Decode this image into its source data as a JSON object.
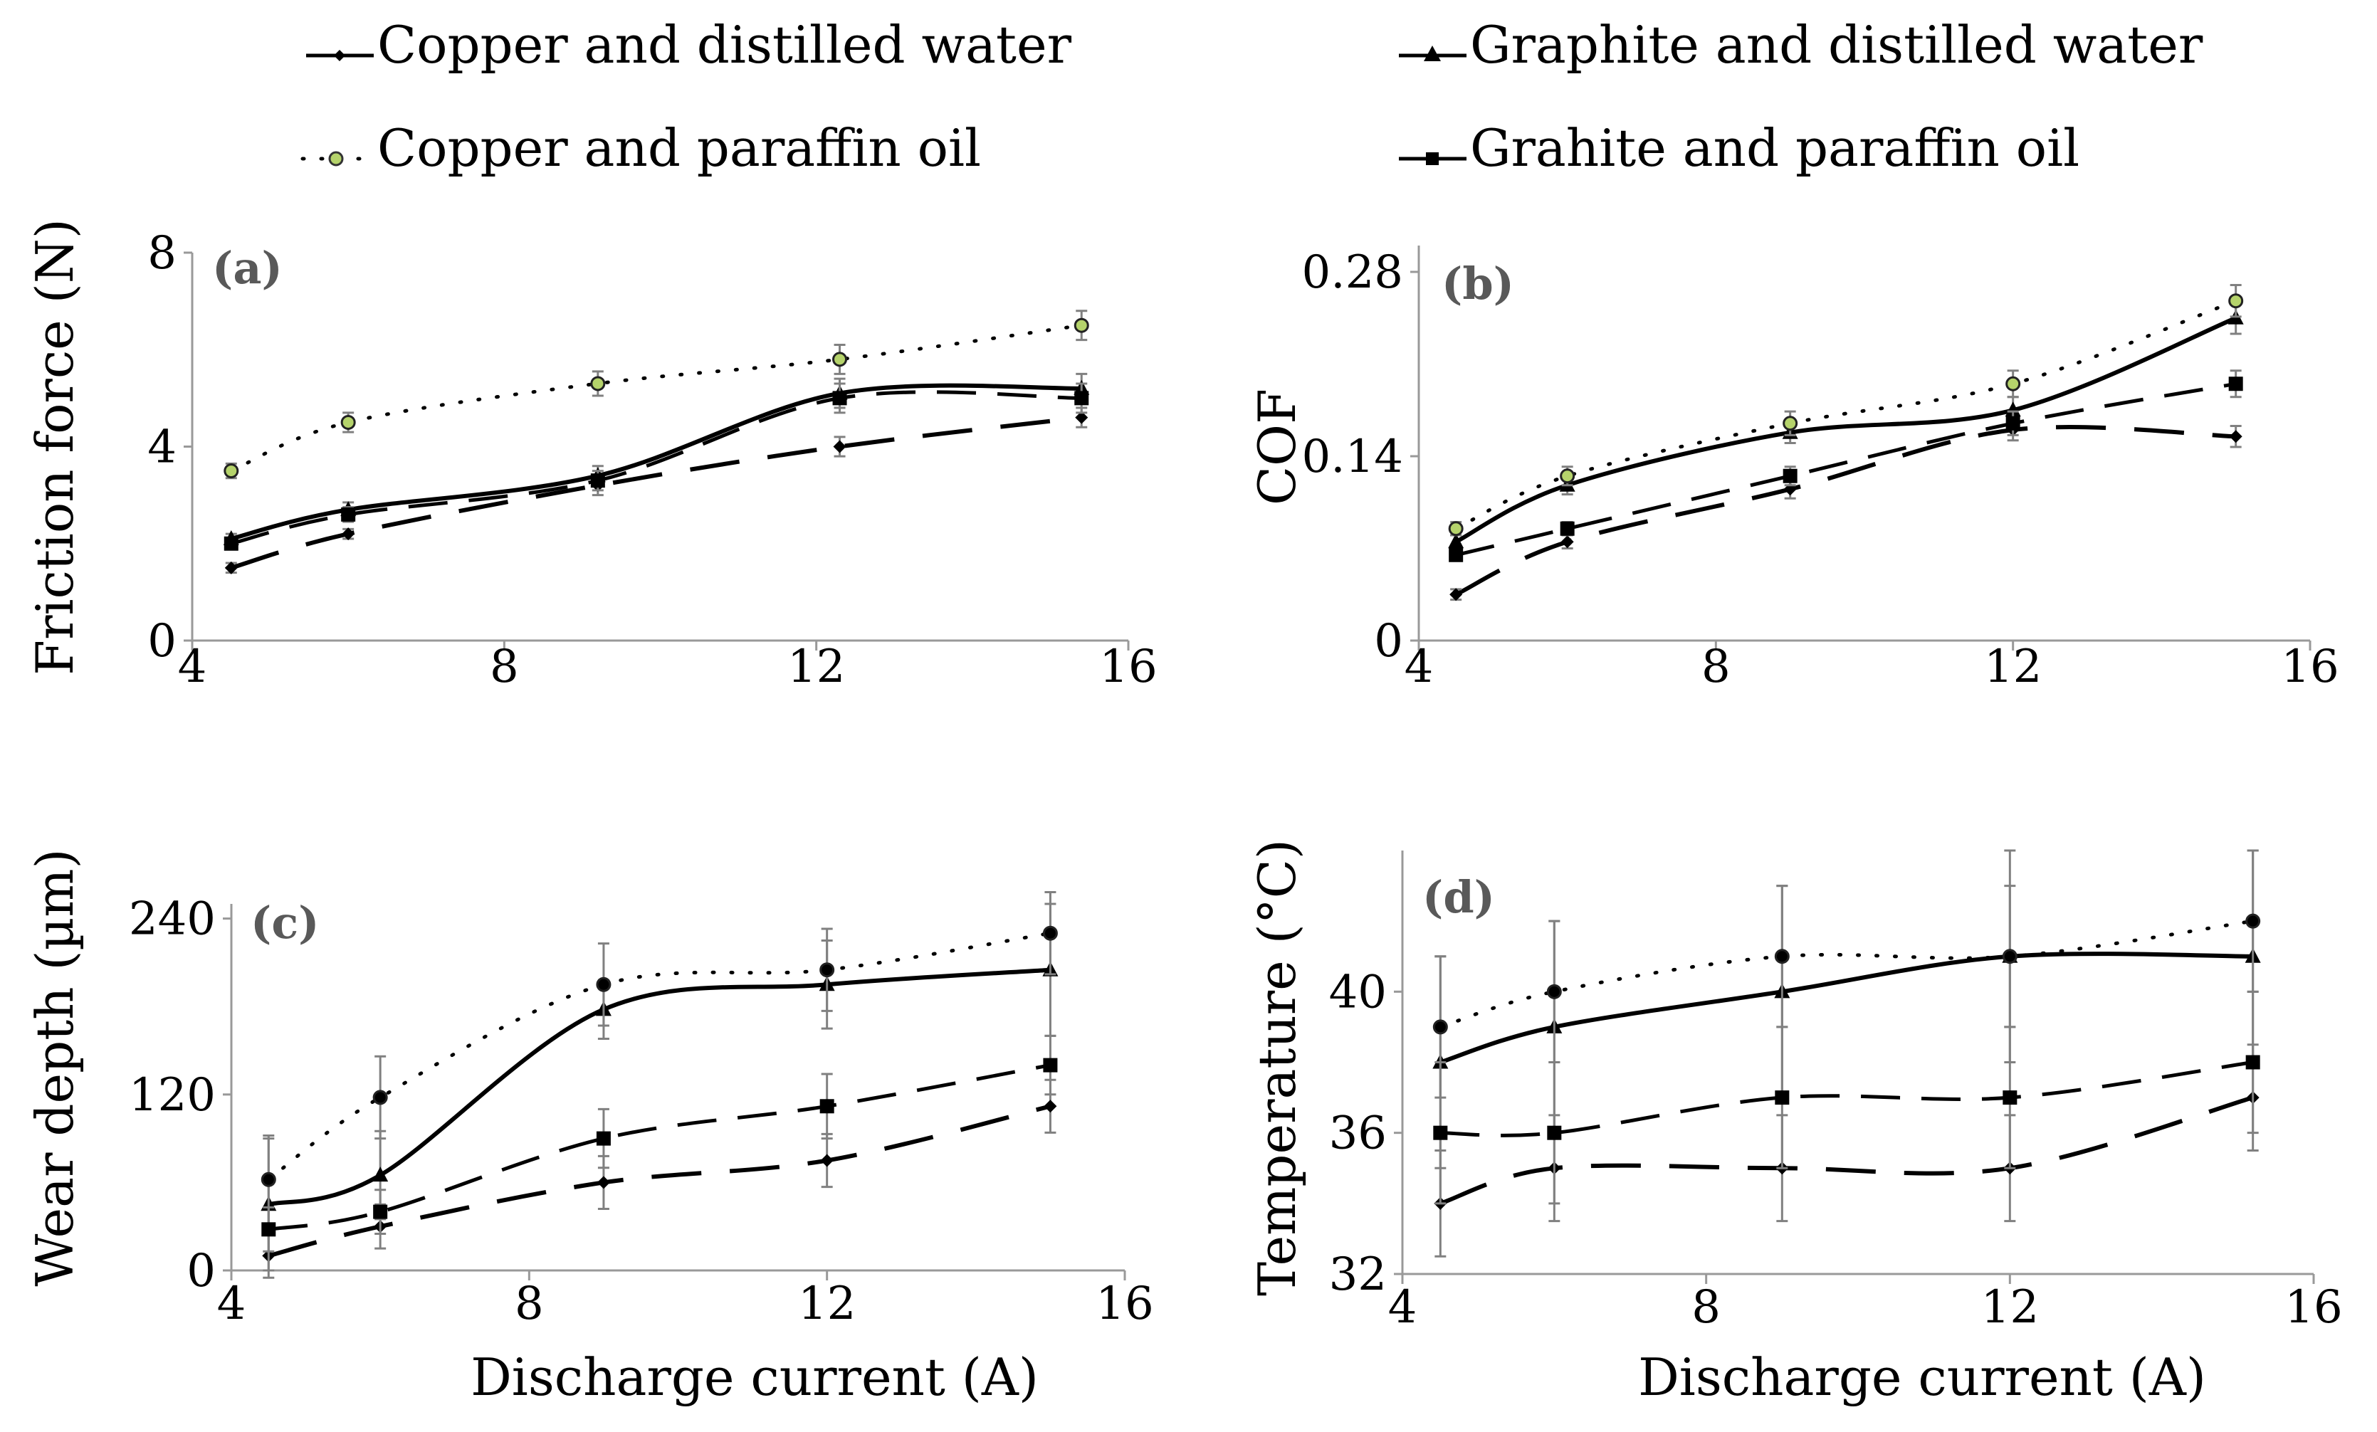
{
  "legend": {
    "items": [
      {
        "label": "Copper and distilled water",
        "marker": "diamond",
        "style": "dash2"
      },
      {
        "label": "Graphite and distilled water",
        "marker": "triangle",
        "style": "solid"
      },
      {
        "label": "Copper and paraffin oil",
        "marker": "circle-green",
        "style": "dot"
      },
      {
        "label": "Grahite and paraffin oil",
        "marker": "square",
        "style": "dash"
      }
    ]
  },
  "chart_data": [
    {
      "panel": "(a)",
      "type": "line",
      "ylabel": "Friction force (N)",
      "xlabel": "",
      "xlim": [
        4,
        16
      ],
      "ylim": [
        0,
        8
      ],
      "xticks": [
        "4",
        "8",
        "12",
        "16"
      ],
      "yticks": [
        "0",
        "4",
        "8"
      ],
      "series": [
        {
          "name": "Copper and distilled water",
          "x": [
            4.5,
            6,
            9.2,
            12.3,
            15.4
          ],
          "values": [
            1.5,
            2.2,
            3.2,
            4.0,
            4.6
          ],
          "err": [
            0.1,
            0.1,
            0.2,
            0.2,
            0.2
          ]
        },
        {
          "name": "Graphite and distilled water",
          "x": [
            4.5,
            6,
            9.2,
            12.3,
            15.4
          ],
          "values": [
            2.1,
            2.7,
            3.4,
            5.1,
            5.2
          ],
          "err": [
            0.1,
            0.15,
            0.2,
            0.3,
            0.3
          ]
        },
        {
          "name": "Copper and paraffin oil",
          "x": [
            4.5,
            6,
            9.2,
            12.3,
            15.4
          ],
          "values": [
            3.5,
            4.5,
            5.3,
            5.8,
            6.5
          ],
          "err": [
            0.15,
            0.2,
            0.25,
            0.3,
            0.3
          ]
        },
        {
          "name": "Grahite and paraffin oil",
          "x": [
            4.5,
            6,
            9.2,
            12.3,
            15.4
          ],
          "values": [
            2.0,
            2.6,
            3.3,
            5.0,
            5.0
          ],
          "err": [
            0.1,
            0.15,
            0.2,
            0.3,
            0.3
          ]
        }
      ]
    },
    {
      "panel": "(b)",
      "type": "line",
      "ylabel": "COF",
      "xlabel": "",
      "xlim": [
        4,
        16
      ],
      "ylim": [
        0,
        0.3
      ],
      "xticks": [
        "4",
        "8",
        "12",
        "16"
      ],
      "yticks": [
        "0",
        "0.14",
        "0.28"
      ],
      "series": [
        {
          "name": "Copper and distilled water",
          "x": [
            4.5,
            6,
            9,
            12,
            15
          ],
          "values": [
            0.035,
            0.075,
            0.115,
            0.16,
            0.155
          ],
          "err": [
            0.004,
            0.005,
            0.007,
            0.008,
            0.008
          ]
        },
        {
          "name": "Graphite and distilled water",
          "x": [
            4.5,
            6,
            9,
            12,
            15
          ],
          "values": [
            0.075,
            0.118,
            0.158,
            0.175,
            0.245
          ],
          "err": [
            0.005,
            0.007,
            0.008,
            0.01,
            0.012
          ]
        },
        {
          "name": "Copper and paraffin oil",
          "x": [
            4.5,
            6,
            9,
            12,
            15
          ],
          "values": [
            0.085,
            0.125,
            0.165,
            0.195,
            0.258
          ],
          "err": [
            0.005,
            0.007,
            0.009,
            0.01,
            0.012
          ]
        },
        {
          "name": "Grahite and paraffin oil",
          "x": [
            4.5,
            6,
            9,
            12,
            15
          ],
          "values": [
            0.065,
            0.085,
            0.125,
            0.165,
            0.195
          ],
          "err": [
            0.004,
            0.005,
            0.007,
            0.009,
            0.01
          ]
        }
      ]
    },
    {
      "panel": "(c)",
      "type": "line",
      "ylabel": "Wear depth (µm)",
      "xlabel": "Discharge current (A)",
      "xlim": [
        4,
        16
      ],
      "ylim": [
        0,
        250
      ],
      "xticks": [
        "4",
        "8",
        "12",
        "16"
      ],
      "yticks": [
        "0",
        "120",
        "240"
      ],
      "series": [
        {
          "name": "Copper and distilled water",
          "x": [
            4.5,
            6,
            9,
            12,
            15
          ],
          "values": [
            10,
            30,
            60,
            75,
            112
          ],
          "err": [
            15,
            15,
            18,
            18,
            18
          ]
        },
        {
          "name": "Graphite and distilled water",
          "x": [
            4.5,
            6,
            9,
            12,
            15
          ],
          "values": [
            45,
            65,
            178,
            195,
            205
          ],
          "err": [
            45,
            30,
            20,
            30,
            45
          ]
        },
        {
          "name": "Copper and paraffin oil",
          "x": [
            4.5,
            6,
            9,
            12,
            15
          ],
          "values": [
            62,
            118,
            195,
            205,
            230
          ],
          "err": [
            30,
            28,
            28,
            28,
            28
          ]
        },
        {
          "name": "Grahite and paraffin oil",
          "x": [
            4.5,
            6,
            9,
            12,
            15
          ],
          "values": [
            28,
            40,
            90,
            112,
            140
          ],
          "err": [
            15,
            15,
            20,
            22,
            20
          ]
        }
      ]
    },
    {
      "panel": "(d)",
      "type": "line",
      "ylabel": "Temperature (°C)",
      "xlabel": "Discharge current (A)",
      "xlim": [
        4,
        16
      ],
      "ylim": [
        32,
        44
      ],
      "xticks": [
        "4",
        "8",
        "12",
        "16"
      ],
      "yticks": [
        "32",
        "36",
        "40"
      ],
      "series": [
        {
          "name": "Copper and distilled water",
          "x": [
            4.5,
            6,
            9,
            12,
            15.2
          ],
          "values": [
            34,
            35,
            35,
            35,
            37
          ],
          "err": [
            1.5,
            1.5,
            1.5,
            1.5,
            1.5
          ]
        },
        {
          "name": "Graphite and distilled water",
          "x": [
            4.5,
            6,
            9,
            12,
            15.2
          ],
          "values": [
            38,
            39,
            40,
            41,
            41
          ],
          "err": [
            3,
            3,
            3,
            3,
            3
          ]
        },
        {
          "name": "Copper and paraffin oil",
          "x": [
            4.5,
            6,
            9,
            12,
            15.2
          ],
          "values": [
            39,
            40,
            41,
            41,
            42
          ],
          "err": [
            2,
            2,
            2,
            2,
            2
          ]
        },
        {
          "name": "Grahite and paraffin oil",
          "x": [
            4.5,
            6,
            9,
            12,
            15.2
          ],
          "values": [
            36,
            36,
            37,
            37,
            38
          ],
          "err": [
            2,
            2,
            2,
            2,
            2
          ]
        }
      ]
    }
  ]
}
